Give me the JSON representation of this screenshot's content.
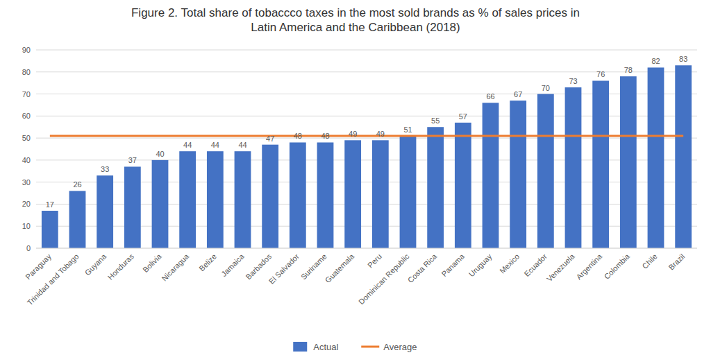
{
  "chart_data": {
    "type": "bar",
    "title": "Figure 2.  Total share of tobaccco taxes in the most sold brands as % of sales prices in\nLatin America and the Caribbean (2018)",
    "categories": [
      "Paraguay",
      "Trinidad and Tobago",
      "Guyana",
      "Honduras",
      "Bolivia",
      "Nicaragua",
      "Belize",
      "Jamaica",
      "Barbados",
      "El Salvador",
      "Suriname",
      "Guatemala",
      "Peru",
      "Dominican Republic",
      "Costa Rica",
      "Panama",
      "Uruguay",
      "Mexico",
      "Ecuador",
      "Venezuela",
      "Argentina",
      "Colombia",
      "Chile",
      "Brazil"
    ],
    "series": [
      {
        "name": "Actual",
        "type": "bar",
        "color": "#4472C4",
        "values": [
          17,
          26,
          33,
          37,
          40,
          44,
          44,
          44,
          47,
          48,
          48,
          49,
          49,
          51,
          55,
          57,
          66,
          67,
          70,
          73,
          76,
          78,
          82,
          83
        ]
      },
      {
        "name": "Average",
        "type": "line",
        "color": "#ED7D31",
        "values": [
          51,
          51,
          51,
          51,
          51,
          51,
          51,
          51,
          51,
          51,
          51,
          51,
          51,
          51,
          51,
          51,
          51,
          51,
          51,
          51,
          51,
          51,
          51,
          51
        ]
      }
    ],
    "ylim": [
      0,
      90
    ],
    "yticks": [
      0,
      10,
      20,
      30,
      40,
      50,
      60,
      70,
      80,
      90
    ],
    "grid": true,
    "data_labels": true,
    "legend": "bottom"
  }
}
